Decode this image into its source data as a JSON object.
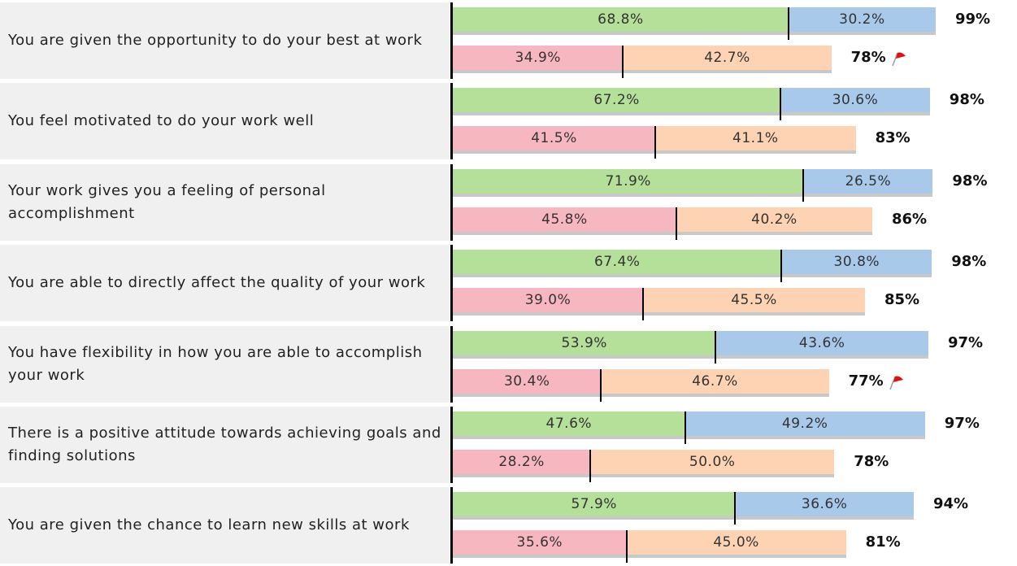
{
  "chart_data": {
    "type": "bar",
    "xlim": [
      0,
      100
    ],
    "colors": [
      "#b5e09a",
      "#a9c9ea",
      "#f7b7c0",
      "#fdd3b3"
    ],
    "rows": [
      {
        "label": "You are given the opportunity to do your best at work",
        "bars": [
          {
            "values": [
              68.8,
              30.2
            ],
            "value_labels": [
              "68.8%",
              "30.2%"
            ],
            "total_label": "99%",
            "flag": false
          },
          {
            "values": [
              34.9,
              42.7
            ],
            "value_labels": [
              "34.9%",
              "42.7%"
            ],
            "total_label": "78%",
            "flag": true
          }
        ]
      },
      {
        "label": "You feel motivated to do your work well",
        "bars": [
          {
            "values": [
              67.2,
              30.6
            ],
            "value_labels": [
              "67.2%",
              "30.6%"
            ],
            "total_label": "98%",
            "flag": false
          },
          {
            "values": [
              41.5,
              41.1
            ],
            "value_labels": [
              "41.5%",
              "41.1%"
            ],
            "total_label": "83%",
            "flag": false
          }
        ]
      },
      {
        "label": "Your work gives you a feeling of personal accomplishment",
        "bars": [
          {
            "values": [
              71.9,
              26.5
            ],
            "value_labels": [
              "71.9%",
              "26.5%"
            ],
            "total_label": "98%",
            "flag": false
          },
          {
            "values": [
              45.8,
              40.2
            ],
            "value_labels": [
              "45.8%",
              "40.2%"
            ],
            "total_label": "86%",
            "flag": false
          }
        ]
      },
      {
        "label": "You are able to directly affect the quality of your work",
        "bars": [
          {
            "values": [
              67.4,
              30.8
            ],
            "value_labels": [
              "67.4%",
              "30.8%"
            ],
            "total_label": "98%",
            "flag": false
          },
          {
            "values": [
              39.0,
              45.5
            ],
            "value_labels": [
              "39.0%",
              "45.5%"
            ],
            "total_label": "85%",
            "flag": false
          }
        ]
      },
      {
        "label": "You have flexibility in how you are able to accomplish your work",
        "bars": [
          {
            "values": [
              53.9,
              43.6
            ],
            "value_labels": [
              "53.9%",
              "43.6%"
            ],
            "total_label": "97%",
            "flag": false
          },
          {
            "values": [
              30.4,
              46.7
            ],
            "value_labels": [
              "30.4%",
              "46.7%"
            ],
            "total_label": "77%",
            "flag": true
          }
        ]
      },
      {
        "label": "There is a positive attitude towards achieving goals and finding solutions",
        "bars": [
          {
            "values": [
              47.6,
              49.2
            ],
            "value_labels": [
              "47.6%",
              "49.2%"
            ],
            "total_label": "97%",
            "flag": false
          },
          {
            "values": [
              28.2,
              50.0
            ],
            "value_labels": [
              "28.2%",
              "50.0%"
            ],
            "total_label": "78%",
            "flag": false
          }
        ]
      },
      {
        "label": "You are given the chance to learn new skills at work",
        "bars": [
          {
            "values": [
              57.9,
              36.6
            ],
            "value_labels": [
              "57.9%",
              "36.6%"
            ],
            "total_label": "94%",
            "flag": false
          },
          {
            "values": [
              35.6,
              45.0
            ],
            "value_labels": [
              "35.6%",
              "45.0%"
            ],
            "total_label": "81%",
            "flag": false
          }
        ]
      }
    ]
  }
}
